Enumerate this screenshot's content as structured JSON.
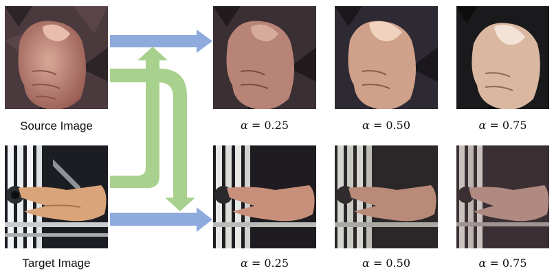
{
  "figure": {
    "source_label": "Source Image",
    "target_label": "Target Image",
    "alpha_symbol": "α",
    "equals": " = ",
    "top_row_alphas": [
      "0.25",
      "0.50",
      "0.75"
    ],
    "bottom_row_alphas": [
      "0.25",
      "0.50",
      "0.75"
    ],
    "colors": {
      "blue_arrow": "#8faadc",
      "green_arrow": "#a9d18e"
    }
  }
}
